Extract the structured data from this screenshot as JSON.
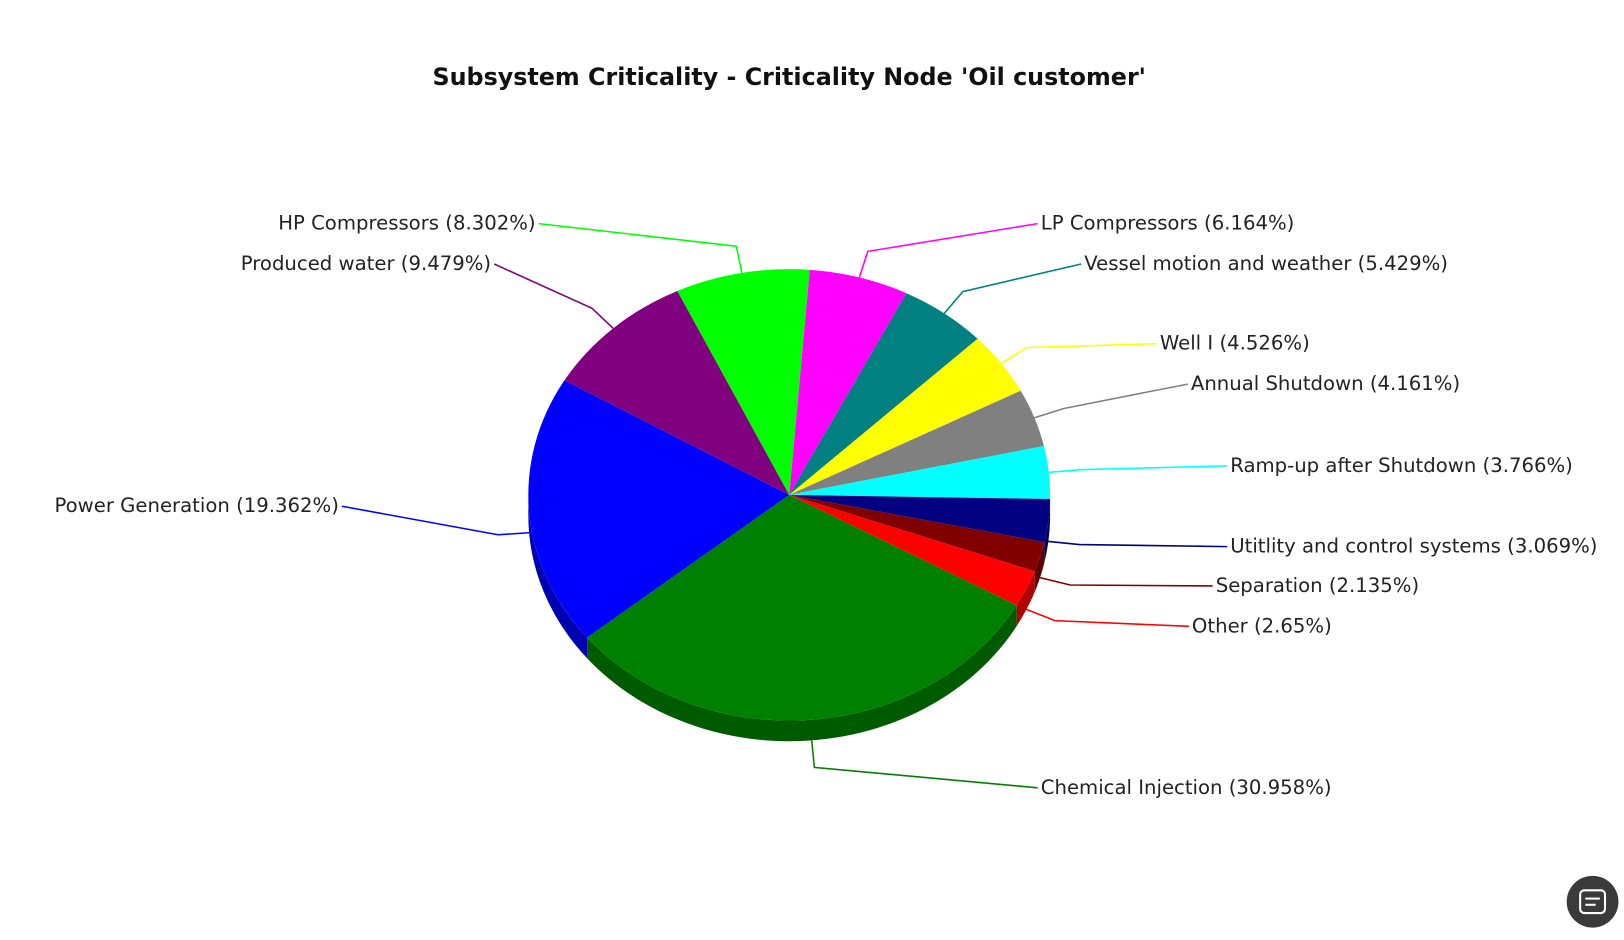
{
  "chart_data": {
    "type": "pie",
    "title": "Subsystem Criticality - Criticality Node 'Oil customer'",
    "categories": [
      "LP Compressors",
      "Vessel motion and weather",
      "Well I",
      "Annual Shutdown",
      "Ramp-up after Shutdown",
      "Utitlity and control systems",
      "Separation",
      "Other",
      "Chemical Injection",
      "Power Generation",
      "Produced water",
      "HP Compressors"
    ],
    "values": [
      6.164,
      5.429,
      4.526,
      4.161,
      3.766,
      3.069,
      2.135,
      2.65,
      30.958,
      19.362,
      9.479,
      8.302
    ],
    "value_labels": [
      "(6.164%)",
      "(5.429%)",
      "(4.526%)",
      "(4.161%)",
      "(3.766%)",
      "(3.069%)",
      "(2.135%)",
      "(2.65%)",
      "(30.958%)",
      "(19.362%)",
      "(9.479%)",
      "(8.302%)"
    ],
    "colors": [
      "#ff00ff",
      "#008080",
      "#ffff00",
      "#808080",
      "#00ffff",
      "#000080",
      "#800000",
      "#ff0000",
      "#008000",
      "#0000ff",
      "#800080",
      "#00ff00"
    ]
  }
}
